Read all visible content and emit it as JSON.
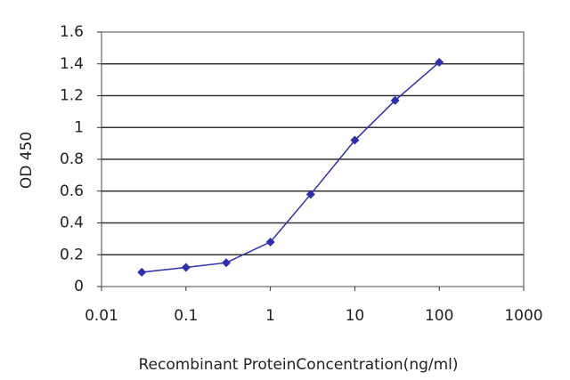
{
  "chart_data": {
    "type": "line",
    "x_label": "Recombinant ProteinConcentration(ng/ml)",
    "y_label": "OD 450",
    "x": [
      0.03,
      0.1,
      0.3,
      1,
      3,
      10,
      30,
      100
    ],
    "series": [
      {
        "name": "OD 450",
        "color": "#2e2eb0",
        "values": [
          0.09,
          0.12,
          0.15,
          0.28,
          0.58,
          0.92,
          1.17,
          1.41
        ]
      }
    ],
    "xlim": [
      0.01,
      1000
    ],
    "xticks": [
      0.01,
      0.1,
      1,
      10,
      100,
      1000
    ],
    "xscale": "log",
    "ylim": [
      0,
      1.6
    ],
    "yticks": [
      0,
      0.2,
      0.4,
      0.6,
      0.8,
      1,
      1.2,
      1.4,
      1.6
    ],
    "grid": true
  }
}
